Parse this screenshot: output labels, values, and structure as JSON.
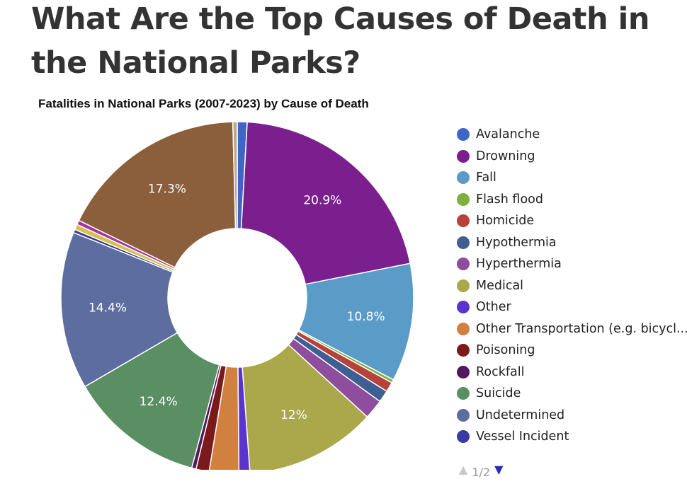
{
  "article": {
    "headline": "What Are the Top Causes of Death in the National Parks?"
  },
  "chart_data": {
    "type": "pie",
    "title": "Fatalities in National Parks (2007-2023) by Cause of Death",
    "donut": true,
    "legend_position": "right",
    "slices": [
      {
        "name": "Avalanche",
        "value": 0.9,
        "color": "#3f66c7"
      },
      {
        "name": "Drowning",
        "value": 20.9,
        "color": "#7b1f8f",
        "label": "20.9%"
      },
      {
        "name": "Fall",
        "value": 10.8,
        "color": "#5b9bc8",
        "label": "10.8%"
      },
      {
        "name": "Flash flood",
        "value": 0.3,
        "color": "#7bb13c"
      },
      {
        "name": "Homicide",
        "value": 0.9,
        "color": "#b6423c"
      },
      {
        "name": "Hypothermia",
        "value": 1.1,
        "color": "#3f5f92"
      },
      {
        "name": "Hyperthermia",
        "value": 1.8,
        "color": "#8f4d9d"
      },
      {
        "name": "Medical",
        "value": 12.0,
        "color": "#aaa84a",
        "label": "12%"
      },
      {
        "name": "Other",
        "value": 1.0,
        "color": "#5b33cf"
      },
      {
        "name": "Other Transportation (e.g. bicycl...",
        "value": 2.7,
        "color": "#d0813f"
      },
      {
        "name": "Poisoning",
        "value": 1.2,
        "color": "#7a1a1a"
      },
      {
        "name": "Rockfall",
        "value": 0.4,
        "color": "#52185e"
      },
      {
        "name": "Suicide",
        "value": 12.4,
        "color": "#5a8f64",
        "label": "12.4%"
      },
      {
        "name": "Undetermined",
        "value": 14.4,
        "color": "#5d6d9f",
        "label": "14.4%"
      },
      {
        "name": "Vessel Incident",
        "value": 0.3,
        "color": "#3a3aa0"
      },
      {
        "name": "",
        "value": 0.5,
        "color": "#d4c24a"
      },
      {
        "name": "",
        "value": 0.4,
        "color": "#a6359e"
      },
      {
        "name": "",
        "value": 17.3,
        "color": "#8b5e3c",
        "label": "17.3%"
      },
      {
        "name": "",
        "value": 0.4,
        "color": "#b8aa8c"
      }
    ]
  },
  "legend": {
    "items": [
      {
        "label": "Avalanche",
        "color": "#3f66c7"
      },
      {
        "label": "Drowning",
        "color": "#7b1f8f"
      },
      {
        "label": "Fall",
        "color": "#5b9bc8"
      },
      {
        "label": "Flash flood",
        "color": "#7bb13c"
      },
      {
        "label": "Homicide",
        "color": "#b6423c"
      },
      {
        "label": "Hypothermia",
        "color": "#3f5f92"
      },
      {
        "label": "Hyperthermia",
        "color": "#8f4d9d"
      },
      {
        "label": "Medical",
        "color": "#aaa84a"
      },
      {
        "label": "Other",
        "color": "#5b33cf"
      },
      {
        "label": "Other Transportation (e.g. bicycl...",
        "color": "#d0813f"
      },
      {
        "label": "Poisoning",
        "color": "#7a1a1a"
      },
      {
        "label": "Rockfall",
        "color": "#52185e"
      },
      {
        "label": "Suicide",
        "color": "#5a8f64"
      },
      {
        "label": "Undetermined",
        "color": "#5d6d9f"
      },
      {
        "label": "Vessel Incident",
        "color": "#3a3aa0"
      }
    ],
    "pager": {
      "text": "1/2",
      "prev_icon": "triangle-up-icon",
      "next_icon": "triangle-down-icon"
    }
  }
}
